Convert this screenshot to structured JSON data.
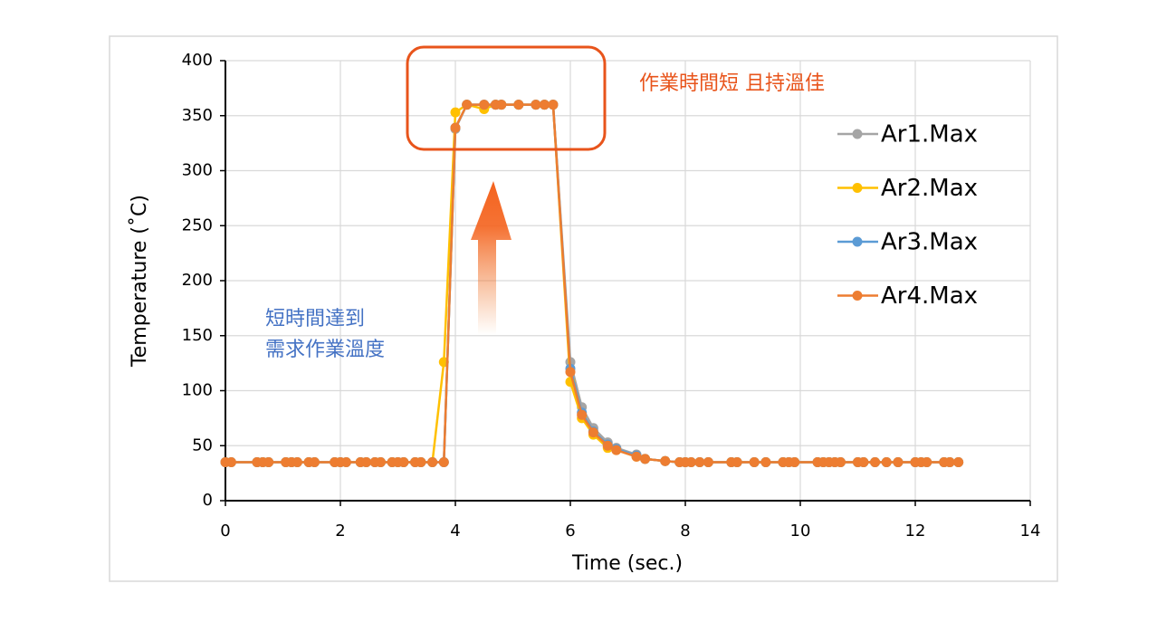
{
  "chart_data": {
    "type": "line",
    "xlabel": "Time (sec.)",
    "ylabel": "Temperature (˚C)",
    "xlim": [
      0,
      14
    ],
    "xticks": [
      0,
      2,
      4,
      6,
      8,
      10,
      12,
      14
    ],
    "ylim": [
      0,
      400
    ],
    "yticks": [
      0,
      50,
      100,
      150,
      200,
      250,
      300,
      350,
      400
    ],
    "grid": true,
    "legend": "right",
    "annotations": [
      "作業時間短 且持溫佳",
      "短時間達到",
      "需求作業溫度"
    ],
    "x": [
      0,
      0.1,
      0.55,
      0.65,
      0.75,
      1.05,
      1.15,
      1.25,
      1.45,
      1.55,
      1.9,
      2.0,
      2.1,
      2.35,
      2.45,
      2.6,
      2.7,
      2.9,
      3.0,
      3.1,
      3.3,
      3.4,
      3.6,
      3.8,
      4.0,
      4.2,
      4.5,
      4.7,
      4.8,
      5.1,
      5.4,
      5.55,
      5.7,
      6.0,
      6.2,
      6.4,
      6.65,
      6.8,
      7.15,
      7.3,
      7.65,
      7.9,
      8.0,
      8.1,
      8.25,
      8.4,
      8.8,
      8.9,
      9.2,
      9.4,
      9.7,
      9.8,
      9.9,
      10.3,
      10.4,
      10.5,
      10.6,
      10.7,
      11.0,
      11.1,
      11.3,
      11.5,
      11.7,
      12.0,
      12.1,
      12.2,
      12.5,
      12.6,
      12.75
    ],
    "series": [
      {
        "name": "Ar1.Max",
        "color": "#a5a5a5",
        "values": [
          35,
          35,
          35,
          35,
          35,
          35,
          35,
          35,
          35,
          35,
          35,
          35,
          35,
          35,
          35,
          35,
          35,
          35,
          35,
          35,
          35,
          35,
          35,
          35,
          338,
          360,
          360,
          360,
          360,
          360,
          360,
          360,
          360,
          126,
          85,
          66,
          53,
          48,
          42,
          38,
          36,
          35,
          35,
          35,
          35,
          35,
          35,
          35,
          35,
          35,
          35,
          35,
          35,
          35,
          35,
          35,
          35,
          35,
          35,
          35,
          35,
          35,
          35,
          35,
          35,
          35,
          35,
          35,
          35
        ]
      },
      {
        "name": "Ar2.Max",
        "color": "#ffc000",
        "values": [
          35,
          35,
          35,
          35,
          35,
          35,
          35,
          35,
          35,
          35,
          35,
          35,
          35,
          35,
          35,
          35,
          35,
          35,
          35,
          35,
          35,
          35,
          35,
          126,
          353,
          360,
          356,
          360,
          360,
          360,
          360,
          360,
          360,
          108,
          75,
          60,
          48,
          46,
          40,
          38,
          36,
          35,
          35,
          35,
          35,
          35,
          35,
          35,
          35,
          35,
          35,
          35,
          35,
          35,
          35,
          35,
          35,
          35,
          35,
          35,
          35,
          35,
          35,
          35,
          35,
          35,
          35,
          35,
          35
        ]
      },
      {
        "name": "Ar3.Max",
        "color": "#5b9bd5",
        "values": [
          35,
          35,
          35,
          35,
          35,
          35,
          35,
          35,
          35,
          35,
          35,
          35,
          35,
          35,
          35,
          35,
          35,
          35,
          35,
          35,
          35,
          35,
          35,
          35,
          339,
          360,
          360,
          360,
          360,
          360,
          360,
          360,
          360,
          120,
          80,
          63,
          51,
          47,
          41,
          38,
          36,
          35,
          35,
          35,
          35,
          35,
          35,
          35,
          35,
          35,
          35,
          35,
          35,
          35,
          35,
          35,
          35,
          35,
          35,
          35,
          35,
          35,
          35,
          35,
          35,
          35,
          35,
          35,
          35
        ]
      },
      {
        "name": "Ar4.Max",
        "color": "#ed7d31",
        "values": [
          35,
          35,
          35,
          35,
          35,
          35,
          35,
          35,
          35,
          35,
          35,
          35,
          35,
          35,
          35,
          35,
          35,
          35,
          35,
          35,
          35,
          35,
          35,
          35,
          339,
          360,
          360,
          360,
          360,
          360,
          360,
          360,
          360,
          117,
          78,
          62,
          50,
          46,
          40,
          38,
          36,
          35,
          35,
          35,
          35,
          35,
          35,
          35,
          35,
          35,
          35,
          35,
          35,
          35,
          35,
          35,
          35,
          35,
          35,
          35,
          35,
          35,
          35,
          35,
          35,
          35,
          35,
          35,
          35
        ]
      }
    ]
  }
}
